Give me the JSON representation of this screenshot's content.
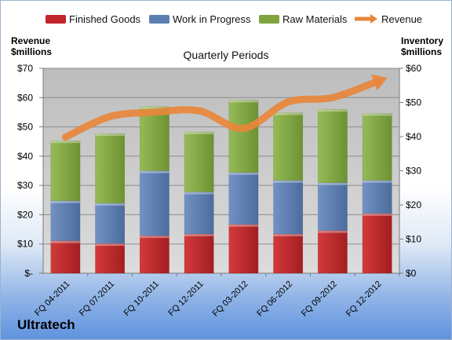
{
  "legend": {
    "finished_goods": "Finished Goods",
    "work_in_progress": "Work in Progress",
    "raw_materials": "Raw Materials",
    "revenue": "Revenue"
  },
  "left_axis_label": {
    "line1": "Revenue",
    "line2": "$millions"
  },
  "right_axis_label": {
    "line1": "Inventory",
    "line2": "$millions"
  },
  "subtitle": "Quarterly Periods",
  "company": "Ultratech",
  "colors": {
    "finished_goods": "#c0262b",
    "work_in_progress": "#5c7eb2",
    "raw_materials": "#7fa43f",
    "revenue": "#e8873b",
    "plot_bg": "#c8c8c8"
  },
  "chart_data": {
    "type": "bar",
    "stacked": true,
    "categories": [
      "FQ 04-2011",
      "FQ 07-2011",
      "FQ 10-2011",
      "FQ 12-2011",
      "FQ 03-2012",
      "FQ 06-2012",
      "FQ 09-2012",
      "FQ 12-2012"
    ],
    "series": [
      {
        "name": "Finished Goods",
        "axis": "right",
        "values": [
          9.5,
          8.7,
          11.0,
          11.5,
          14.3,
          11.5,
          12.5,
          17.5
        ]
      },
      {
        "name": "Work in Progress",
        "axis": "right",
        "values": [
          11.7,
          11.8,
          19.0,
          12.3,
          15.2,
          15.7,
          14.0,
          9.7
        ]
      },
      {
        "name": "Raw Materials",
        "axis": "right",
        "values": [
          17.6,
          20.4,
          18.8,
          17.6,
          21.2,
          19.8,
          21.5,
          19.6
        ]
      },
      {
        "name": "Revenue",
        "type": "line",
        "axis": "left",
        "values": [
          46.5,
          53.5,
          55.0,
          55.5,
          49.5,
          58.5,
          60.0,
          65.5
        ]
      }
    ],
    "left_axis": {
      "label": "Revenue $millions",
      "ylim": [
        0,
        70
      ],
      "ticks": [
        "$-",
        "$10",
        "$20",
        "$30",
        "$40",
        "$50",
        "$60",
        "$70"
      ]
    },
    "right_axis": {
      "label": "Inventory $millions",
      "ylim": [
        0,
        60
      ],
      "ticks": [
        "$0",
        "$10",
        "$20",
        "$30",
        "$40",
        "$50",
        "$60"
      ]
    },
    "title": "Quarterly Periods",
    "grid": true,
    "legend_position": "top"
  }
}
